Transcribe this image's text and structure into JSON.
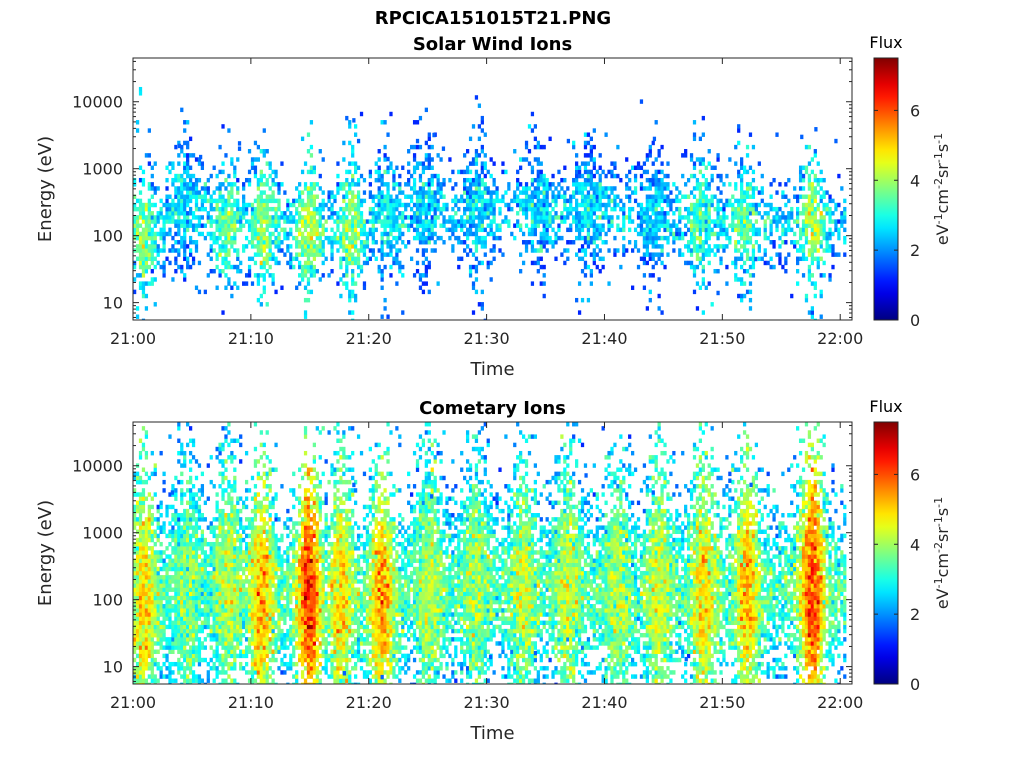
{
  "figure_title": "RPCICA151015T21.PNG",
  "chart_data": [
    {
      "type": "heatmap",
      "panel": "Solar Wind Ions",
      "title": "Solar Wind Ions",
      "xlabel": "Time",
      "ylabel": "Energy (eV)",
      "x_tick_labels": [
        "21:00",
        "21:10",
        "21:20",
        "21:30",
        "21:40",
        "21:50",
        "22:00"
      ],
      "xlim_minutes": [
        0,
        61
      ],
      "y_scale": "log",
      "y_tick_labels": [
        "10",
        "100",
        "1000",
        "10000"
      ],
      "ylim": [
        5.5,
        45000
      ],
      "colorbar": {
        "title": "Flux",
        "label": "eV-1cm-2sr-1s-1",
        "range": [
          0,
          7.5
        ],
        "ticks": [
          "0",
          "2",
          "4",
          "6"
        ],
        "colormap": "jet"
      },
      "profile": {
        "baseline": 200,
        "spread": 0.35,
        "intensity": 2.6,
        "density": 0.55,
        "bursts": [
          {
            "t": 0.8,
            "center": 110,
            "intensity": 3.8
          },
          {
            "t": 4.2,
            "center": 250,
            "intensity": 2.6
          },
          {
            "t": 7.8,
            "center": 150,
            "intensity": 3.6
          },
          {
            "t": 11.0,
            "center": 140,
            "intensity": 4.0
          },
          {
            "t": 14.8,
            "center": 130,
            "intensity": 4.2
          },
          {
            "t": 18.3,
            "center": 130,
            "intensity": 4.0
          },
          {
            "t": 21.5,
            "center": 200,
            "intensity": 2.8
          },
          {
            "t": 24.5,
            "center": 250,
            "intensity": 2.4
          },
          {
            "t": 29.0,
            "center": 230,
            "intensity": 2.6
          },
          {
            "t": 34.2,
            "center": 230,
            "intensity": 2.5
          },
          {
            "t": 38.5,
            "center": 250,
            "intensity": 2.6
          },
          {
            "t": 44.0,
            "center": 200,
            "intensity": 2.6
          },
          {
            "t": 48.0,
            "center": 170,
            "intensity": 3.5
          },
          {
            "t": 51.8,
            "center": 150,
            "intensity": 3.6
          },
          {
            "t": 57.5,
            "center": 150,
            "intensity": 4.2
          }
        ],
        "outliers": [
          {
            "t": 3.8,
            "e": 2200
          },
          {
            "t": 5.6,
            "e": 1500
          },
          {
            "t": 8.9,
            "e": 2000
          },
          {
            "t": 8.9,
            "e": 2400
          },
          {
            "t": 18.6,
            "e": 5300
          },
          {
            "t": 19.0,
            "e": 2600
          },
          {
            "t": 21.5,
            "e": 1400
          },
          {
            "t": 24.0,
            "e": 2600
          },
          {
            "t": 25.4,
            "e": 3200
          },
          {
            "t": 26.2,
            "e": 2000
          },
          {
            "t": 36.8,
            "e": 2600
          },
          {
            "t": 44.1,
            "e": 2800
          },
          {
            "t": 56.6,
            "e": 3000
          },
          {
            "t": 57.8,
            "e": 3900
          },
          {
            "t": 59.5,
            "e": 2600
          },
          {
            "t": 49.5,
            "e": 14
          },
          {
            "t": 52.7,
            "e": 45
          }
        ]
      }
    },
    {
      "type": "heatmap",
      "panel": "Cometary Ions",
      "title": "Cometary Ions",
      "xlabel": "Time",
      "ylabel": "Energy (eV)",
      "x_tick_labels": [
        "21:00",
        "21:10",
        "21:20",
        "21:30",
        "21:40",
        "21:50",
        "22:00"
      ],
      "xlim_minutes": [
        0,
        61
      ],
      "y_scale": "log",
      "y_tick_labels": [
        "10",
        "100",
        "1000",
        "10000"
      ],
      "ylim": [
        5.5,
        45000
      ],
      "colorbar": {
        "title": "Flux",
        "label": "eV-1cm-2sr-1s-1",
        "range": [
          0,
          7.5
        ],
        "ticks": [
          "0",
          "2",
          "4",
          "6"
        ],
        "colormap": "jet"
      },
      "profile": {
        "baseline": 180,
        "spread": 0.75,
        "intensity": 3.3,
        "density": 0.8,
        "bursts": [
          {
            "t": 0.8,
            "center": 90,
            "intensity": 5.0
          },
          {
            "t": 4.5,
            "center": 150,
            "intensity": 3.8
          },
          {
            "t": 8.0,
            "center": 140,
            "intensity": 4.3
          },
          {
            "t": 10.8,
            "center": 110,
            "intensity": 5.2
          },
          {
            "t": 14.8,
            "center": 110,
            "intensity": 6.3
          },
          {
            "t": 17.5,
            "center": 100,
            "intensity": 5.0
          },
          {
            "t": 21.0,
            "center": 100,
            "intensity": 5.4
          },
          {
            "t": 25.0,
            "center": 150,
            "intensity": 4.2
          },
          {
            "t": 29.0,
            "center": 150,
            "intensity": 4.1
          },
          {
            "t": 33.0,
            "center": 130,
            "intensity": 4.3
          },
          {
            "t": 36.8,
            "center": 150,
            "intensity": 4.4
          },
          {
            "t": 41.0,
            "center": 130,
            "intensity": 4.2
          },
          {
            "t": 44.5,
            "center": 140,
            "intensity": 4.5
          },
          {
            "t": 48.3,
            "center": 130,
            "intensity": 5.0
          },
          {
            "t": 52.0,
            "center": 130,
            "intensity": 5.2
          },
          {
            "t": 57.5,
            "center": 130,
            "intensity": 6.2
          }
        ],
        "outliers": [
          {
            "t": 3.2,
            "e": 4000
          },
          {
            "t": 18.6,
            "e": 5200
          },
          {
            "t": 25.2,
            "e": 3500
          },
          {
            "t": 38.3,
            "e": 7200
          },
          {
            "t": 44.0,
            "e": 4000
          },
          {
            "t": 50.5,
            "e": 6000
          },
          {
            "t": 52.3,
            "e": 5200
          },
          {
            "t": 17.8,
            "e": 8
          },
          {
            "t": 21.0,
            "e": 7
          },
          {
            "t": 30.2,
            "e": 14
          },
          {
            "t": 34.0,
            "e": 16
          },
          {
            "t": 46.8,
            "e": 13
          }
        ]
      }
    }
  ]
}
